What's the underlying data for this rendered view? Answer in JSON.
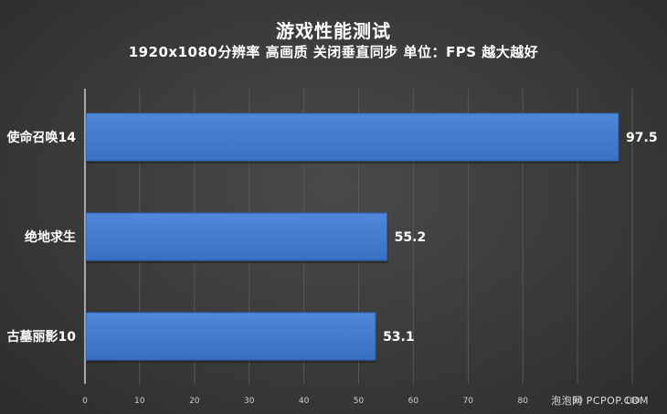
{
  "chart_data": {
    "type": "bar",
    "orientation": "horizontal",
    "title": "游戏性能测试",
    "subtitle": "1920x1080分辨率 高画质 关闭垂直同步 单位：FPS 越大越好",
    "categories": [
      "使命召唤14",
      "绝地求生",
      "古墓丽影10"
    ],
    "values": [
      97.5,
      55.2,
      53.1
    ],
    "value_labels": [
      "97.5",
      "55.2",
      "53.1"
    ],
    "xlim": [
      0,
      100
    ],
    "xticks": [
      0,
      10,
      20,
      30,
      40,
      50,
      60,
      70,
      80,
      90,
      100
    ],
    "grid": true,
    "bar_color": "#3a70c2",
    "bar_highlight": "#4f88d8",
    "grid_color": "#585858"
  },
  "watermark": "泡泡网 PCPOP.COM"
}
